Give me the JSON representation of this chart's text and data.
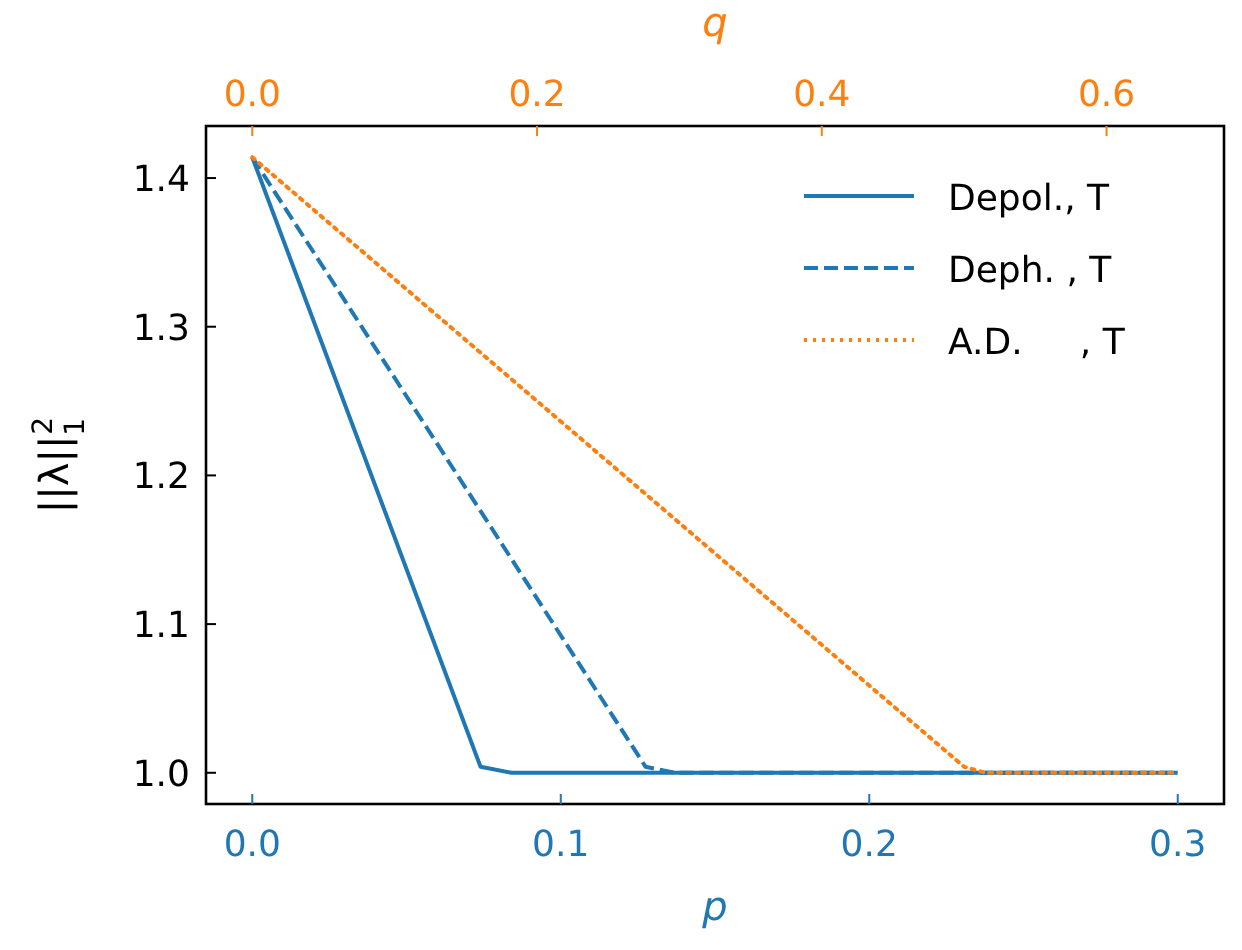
{
  "chart_data": {
    "type": "line",
    "xlabel": "p",
    "x2label": "q",
    "ylabel": "||λ||$_{1}$$^{2}$",
    "xlim": [
      -0.015,
      0.315
    ],
    "xticks": [
      {
        "value": 0,
        "label": "0.0"
      },
      0.1,
      0.2,
      0.3
    ],
    "x2lim": [
      -0.0325,
      0.6825
    ],
    "x2ticks": [
      {
        "value": 0,
        "label": "0.0"
      },
      0.2,
      0.4,
      0.6
    ],
    "ylim": [
      0.979,
      1.435
    ],
    "yticks": [
      {
        "value": 1,
        "label": "1.0"
      },
      1.1,
      1.2,
      1.3,
      1.4
    ],
    "grid": false,
    "legend": "top right",
    "series": [
      {
        "name": "Depol., T",
        "color": "#1f77b4",
        "line_style": "solid",
        "x": [
          0,
          0.074,
          0.084,
          0.3
        ],
        "values": [
          1.414,
          1.004,
          1.0,
          1.0
        ]
      },
      {
        "name": "Deph. , T",
        "color": "#1f77b4",
        "line_style": "dashed",
        "x": [
          0,
          0.1275,
          0.137,
          0.3
        ],
        "values": [
          1.414,
          1.004,
          1.0,
          1.0
        ]
      },
      {
        "name": "A.D.     , T",
        "color": "#ff7f0e",
        "line_style": "dotted",
        "axis": "x2",
        "x": [
          0,
          0.5,
          0.515,
          0.65
        ],
        "values": [
          1.414,
          1.004,
          1.0,
          1.0
        ]
      }
    ]
  }
}
